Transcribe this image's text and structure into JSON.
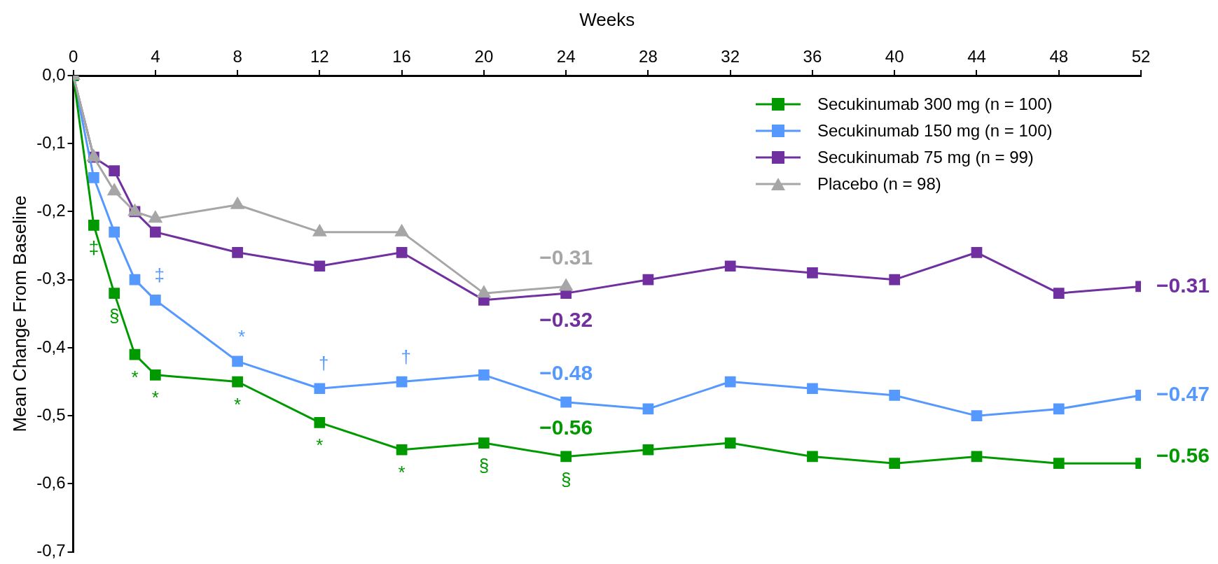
{
  "chart_data": {
    "type": "line",
    "xlabel": "Weeks",
    "ylabel": "Mean Change From Baseline",
    "x": [
      0,
      1,
      2,
      3,
      4,
      8,
      12,
      16,
      20,
      24,
      28,
      32,
      36,
      40,
      44,
      48,
      52
    ],
    "xlim": [
      0,
      52
    ],
    "xticks": [
      0,
      4,
      8,
      12,
      16,
      20,
      24,
      28,
      32,
      36,
      40,
      44,
      48,
      52
    ],
    "ylim": [
      -0.7,
      0
    ],
    "yticks": [
      {
        "value": 0,
        "label": "0,0"
      },
      {
        "value": -0.1,
        "label": "-0,1"
      },
      {
        "value": -0.2,
        "label": "-0,2"
      },
      {
        "value": -0.3,
        "label": "-0,3"
      },
      {
        "value": -0.4,
        "label": "-0,4"
      },
      {
        "value": -0.5,
        "label": "-0,5"
      },
      {
        "value": -0.6,
        "label": "-0,6"
      },
      {
        "value": -0.7,
        "label": "-0,7"
      }
    ],
    "grid": false,
    "legend": "top right",
    "marker": "square",
    "line_style": "solid",
    "series": [
      {
        "name": "Secukinumab 300 mg (n = 100)",
        "color": "#009900",
        "values": [
          0,
          -0.22,
          -0.32,
          -0.41,
          -0.44,
          -0.45,
          -0.51,
          -0.55,
          -0.54,
          -0.56,
          -0.55,
          -0.54,
          -0.56,
          -0.57,
          -0.56,
          -0.57,
          -0.57
        ]
      },
      {
        "name": "Secukinumab 150 mg (n = 100)",
        "color": "#5599ff",
        "values": [
          0,
          -0.15,
          -0.23,
          -0.3,
          -0.33,
          -0.42,
          -0.46,
          -0.45,
          -0.44,
          -0.48,
          -0.49,
          -0.45,
          -0.46,
          -0.47,
          -0.5,
          -0.49,
          -0.47
        ]
      },
      {
        "name": "Secukinumab 75 mg (n = 99)",
        "color": "#7030a0",
        "values": [
          0,
          -0.12,
          -0.14,
          -0.2,
          -0.23,
          -0.26,
          -0.28,
          -0.26,
          -0.33,
          -0.32,
          -0.3,
          -0.28,
          -0.29,
          -0.3,
          -0.26,
          -0.32,
          -0.31
        ]
      },
      {
        "name": "Placebo (n = 98)",
        "color": "#a6a6a6",
        "marker": "triangle",
        "x": [
          0,
          1,
          2,
          3,
          4,
          8,
          12,
          16,
          20,
          24
        ],
        "values": [
          0,
          -0.12,
          -0.17,
          -0.2,
          -0.21,
          -0.19,
          -0.23,
          -0.23,
          -0.32,
          -0.31
        ]
      }
    ],
    "annotations": [
      {
        "text": "‡",
        "x": 1,
        "y": -0.22
      },
      {
        "text": "§",
        "x": 2,
        "y": -0.32
      },
      {
        "text": "*",
        "x": 3,
        "y": -0.41
      },
      {
        "text": "*",
        "x": 4,
        "y": -0.44
      },
      {
        "text": "*",
        "x": 8,
        "y": -0.45
      },
      {
        "text": "*",
        "x": 12,
        "y": -0.51
      },
      {
        "text": "*",
        "x": 16,
        "y": -0.55
      },
      {
        "text": "§",
        "x": 20,
        "y": -0.54
      },
      {
        "text": "§",
        "x": 24,
        "y": -0.56
      },
      {
        "text": "‡",
        "x": 4,
        "y": -0.33
      },
      {
        "text": "*",
        "x": 8,
        "y": -0.42
      },
      {
        "text": "†",
        "x": 12,
        "y": -0.46
      },
      {
        "text": "†",
        "x": 16,
        "y": -0.45
      },
      {
        "text": "−0.31",
        "x": 24,
        "y": -0.31
      },
      {
        "text": "−0.32",
        "x": 24,
        "y": -0.32
      },
      {
        "text": "−0.48",
        "x": 24,
        "y": -0.48
      },
      {
        "text": "−0.56",
        "x": 24,
        "y": -0.56
      },
      {
        "text": "−0.31",
        "x": 52,
        "y": -0.31
      },
      {
        "text": "−0.47",
        "x": 52,
        "y": -0.47
      },
      {
        "text": "−0.56",
        "x": 52,
        "y": -0.56
      }
    ]
  }
}
